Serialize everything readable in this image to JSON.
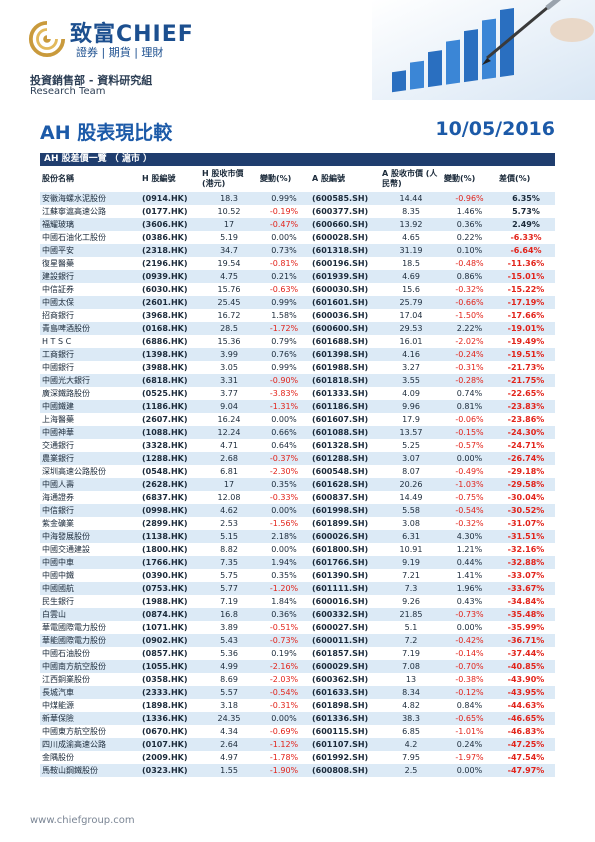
{
  "header": {
    "brand": "致富CHIEF",
    "tagline": "證券 | 期貨 | 理財",
    "dept": "投資銷售部 - 資料研究組",
    "team": "Research Team"
  },
  "report": {
    "title": "AH 股表現比較",
    "date": "10/05/2016",
    "section": "AH 股差價一覽 （ 滬市 ）"
  },
  "columns": [
    "股份名稱",
    "H 股編號",
    "H 股收市價 (港元)",
    "變動(%)",
    "A 股編號",
    "A 股收市價 (人民幣)",
    "變動(%)",
    "差價(%)"
  ],
  "rows": [
    {
      "name": "安徽海螺水泥股份",
      "hcode": "(0914.HK)",
      "hprice": "18.3",
      "hchg": "0.99%",
      "acode": "(600585.SH)",
      "aprice": "14.44",
      "achg": "-0.96%",
      "prem": "6.35%"
    },
    {
      "name": "江蘇寧滬高速公路",
      "hcode": "(0177.HK)",
      "hprice": "10.52",
      "hchg": "-0.19%",
      "acode": "(600377.SH)",
      "aprice": "8.35",
      "achg": "1.46%",
      "prem": "5.73%"
    },
    {
      "name": "福耀玻璃",
      "hcode": "(3606.HK)",
      "hprice": "17",
      "hchg": "-0.47%",
      "acode": "(600660.SH)",
      "aprice": "13.92",
      "achg": "0.36%",
      "prem": "2.49%"
    },
    {
      "name": "中國石油化工股份",
      "hcode": "(0386.HK)",
      "hprice": "5.19",
      "hchg": "0.00%",
      "acode": "(600028.SH)",
      "aprice": "4.65",
      "achg": "0.22%",
      "prem": "-6.33%"
    },
    {
      "name": "中國平安",
      "hcode": "(2318.HK)",
      "hprice": "34.7",
      "hchg": "0.73%",
      "acode": "(601318.SH)",
      "aprice": "31.19",
      "achg": "0.10%",
      "prem": "-6.64%"
    },
    {
      "name": "復星醫藥",
      "hcode": "(2196.HK)",
      "hprice": "19.54",
      "hchg": "-0.81%",
      "acode": "(600196.SH)",
      "aprice": "18.5",
      "achg": "-0.48%",
      "prem": "-11.36%"
    },
    {
      "name": "建設銀行",
      "hcode": "(0939.HK)",
      "hprice": "4.75",
      "hchg": "0.21%",
      "acode": "(601939.SH)",
      "aprice": "4.69",
      "achg": "0.86%",
      "prem": "-15.01%"
    },
    {
      "name": "中信証券",
      "hcode": "(6030.HK)",
      "hprice": "15.76",
      "hchg": "-0.63%",
      "acode": "(600030.SH)",
      "aprice": "15.6",
      "achg": "-0.32%",
      "prem": "-15.22%"
    },
    {
      "name": "中國太保",
      "hcode": "(2601.HK)",
      "hprice": "25.45",
      "hchg": "0.99%",
      "acode": "(601601.SH)",
      "aprice": "25.79",
      "achg": "-0.66%",
      "prem": "-17.19%"
    },
    {
      "name": "招商銀行",
      "hcode": "(3968.HK)",
      "hprice": "16.72",
      "hchg": "1.58%",
      "acode": "(600036.SH)",
      "aprice": "17.04",
      "achg": "-1.50%",
      "prem": "-17.66%"
    },
    {
      "name": "青島啤酒股份",
      "hcode": "(0168.HK)",
      "hprice": "28.5",
      "hchg": "-1.72%",
      "acode": "(600600.SH)",
      "aprice": "29.53",
      "achg": "2.22%",
      "prem": "-19.01%"
    },
    {
      "name": "H T S C",
      "hcode": "(6886.HK)",
      "hprice": "15.36",
      "hchg": "0.79%",
      "acode": "(601688.SH)",
      "aprice": "16.01",
      "achg": "-2.02%",
      "prem": "-19.49%"
    },
    {
      "name": "工商銀行",
      "hcode": "(1398.HK)",
      "hprice": "3.99",
      "hchg": "0.76%",
      "acode": "(601398.SH)",
      "aprice": "4.16",
      "achg": "-0.24%",
      "prem": "-19.51%"
    },
    {
      "name": "中國銀行",
      "hcode": "(3988.HK)",
      "hprice": "3.05",
      "hchg": "0.99%",
      "acode": "(601988.SH)",
      "aprice": "3.27",
      "achg": "-0.31%",
      "prem": "-21.73%"
    },
    {
      "name": "中國光大銀行",
      "hcode": "(6818.HK)",
      "hprice": "3.31",
      "hchg": "-0.90%",
      "acode": "(601818.SH)",
      "aprice": "3.55",
      "achg": "-0.28%",
      "prem": "-21.75%"
    },
    {
      "name": "廣深鐵路股份",
      "hcode": "(0525.HK)",
      "hprice": "3.77",
      "hchg": "-3.83%",
      "acode": "(601333.SH)",
      "aprice": "4.09",
      "achg": "0.74%",
      "prem": "-22.65%"
    },
    {
      "name": "中國鐵建",
      "hcode": "(1186.HK)",
      "hprice": "9.04",
      "hchg": "-1.31%",
      "acode": "(601186.SH)",
      "aprice": "9.96",
      "achg": "0.81%",
      "prem": "-23.83%"
    },
    {
      "name": "上海醫藥",
      "hcode": "(2607.HK)",
      "hprice": "16.24",
      "hchg": "0.00%",
      "acode": "(601607.SH)",
      "aprice": "17.9",
      "achg": "-0.06%",
      "prem": "-23.86%"
    },
    {
      "name": "中國神華",
      "hcode": "(1088.HK)",
      "hprice": "12.24",
      "hchg": "0.66%",
      "acode": "(601088.SH)",
      "aprice": "13.57",
      "achg": "-0.15%",
      "prem": "-24.30%"
    },
    {
      "name": "交通銀行",
      "hcode": "(3328.HK)",
      "hprice": "4.71",
      "hchg": "0.64%",
      "acode": "(601328.SH)",
      "aprice": "5.25",
      "achg": "-0.57%",
      "prem": "-24.71%"
    },
    {
      "name": "農業銀行",
      "hcode": "(1288.HK)",
      "hprice": "2.68",
      "hchg": "-0.37%",
      "acode": "(601288.SH)",
      "aprice": "3.07",
      "achg": "0.00%",
      "prem": "-26.74%"
    },
    {
      "name": "深圳高速公路股份",
      "hcode": "(0548.HK)",
      "hprice": "6.81",
      "hchg": "-2.30%",
      "acode": "(600548.SH)",
      "aprice": "8.07",
      "achg": "-0.49%",
      "prem": "-29.18%"
    },
    {
      "name": "中國人壽",
      "hcode": "(2628.HK)",
      "hprice": "17",
      "hchg": "0.35%",
      "acode": "(601628.SH)",
      "aprice": "20.26",
      "achg": "-1.03%",
      "prem": "-29.58%"
    },
    {
      "name": "海通證券",
      "hcode": "(6837.HK)",
      "hprice": "12.08",
      "hchg": "-0.33%",
      "acode": "(600837.SH)",
      "aprice": "14.49",
      "achg": "-0.75%",
      "prem": "-30.04%"
    },
    {
      "name": "中信銀行",
      "hcode": "(0998.HK)",
      "hprice": "4.62",
      "hchg": "0.00%",
      "acode": "(601998.SH)",
      "aprice": "5.58",
      "achg": "-0.54%",
      "prem": "-30.52%"
    },
    {
      "name": "紫金礦業",
      "hcode": "(2899.HK)",
      "hprice": "2.53",
      "hchg": "-1.56%",
      "acode": "(601899.SH)",
      "aprice": "3.08",
      "achg": "-0.32%",
      "prem": "-31.07%"
    },
    {
      "name": "中海發展股份",
      "hcode": "(1138.HK)",
      "hprice": "5.15",
      "hchg": "2.18%",
      "acode": "(600026.SH)",
      "aprice": "6.31",
      "achg": "4.30%",
      "prem": "-31.51%"
    },
    {
      "name": "中國交通建設",
      "hcode": "(1800.HK)",
      "hprice": "8.82",
      "hchg": "0.00%",
      "acode": "(601800.SH)",
      "aprice": "10.91",
      "achg": "1.21%",
      "prem": "-32.16%"
    },
    {
      "name": "中國中車",
      "hcode": "(1766.HK)",
      "hprice": "7.35",
      "hchg": "1.94%",
      "acode": "(601766.SH)",
      "aprice": "9.19",
      "achg": "0.44%",
      "prem": "-32.88%"
    },
    {
      "name": "中國中鐵",
      "hcode": "(0390.HK)",
      "hprice": "5.75",
      "hchg": "0.35%",
      "acode": "(601390.SH)",
      "aprice": "7.21",
      "achg": "1.41%",
      "prem": "-33.07%"
    },
    {
      "name": "中國國航",
      "hcode": "(0753.HK)",
      "hprice": "5.77",
      "hchg": "-1.20%",
      "acode": "(601111.SH)",
      "aprice": "7.3",
      "achg": "1.96%",
      "prem": "-33.67%"
    },
    {
      "name": "民生銀行",
      "hcode": "(1988.HK)",
      "hprice": "7.19",
      "hchg": "1.84%",
      "acode": "(600016.SH)",
      "aprice": "9.26",
      "achg": "0.43%",
      "prem": "-34.84%"
    },
    {
      "name": "白雲山",
      "hcode": "(0874.HK)",
      "hprice": "16.8",
      "hchg": "0.36%",
      "acode": "(600332.SH)",
      "aprice": "21.85",
      "achg": "-0.73%",
      "prem": "-35.48%"
    },
    {
      "name": "華電國際電力股份",
      "hcode": "(1071.HK)",
      "hprice": "3.89",
      "hchg": "-0.51%",
      "acode": "(600027.SH)",
      "aprice": "5.1",
      "achg": "0.00%",
      "prem": "-35.99%"
    },
    {
      "name": "華能國際電力股份",
      "hcode": "(0902.HK)",
      "hprice": "5.43",
      "hchg": "-0.73%",
      "acode": "(600011.SH)",
      "aprice": "7.2",
      "achg": "-0.42%",
      "prem": "-36.71%"
    },
    {
      "name": "中國石油股份",
      "hcode": "(0857.HK)",
      "hprice": "5.36",
      "hchg": "0.19%",
      "acode": "(601857.SH)",
      "aprice": "7.19",
      "achg": "-0.14%",
      "prem": "-37.44%"
    },
    {
      "name": "中國南方航空股份",
      "hcode": "(1055.HK)",
      "hprice": "4.99",
      "hchg": "-2.16%",
      "acode": "(600029.SH)",
      "aprice": "7.08",
      "achg": "-0.70%",
      "prem": "-40.85%"
    },
    {
      "name": "江西銅業股份",
      "hcode": "(0358.HK)",
      "hprice": "8.69",
      "hchg": "-2.03%",
      "acode": "(600362.SH)",
      "aprice": "13",
      "achg": "-0.38%",
      "prem": "-43.90%"
    },
    {
      "name": "長城汽車",
      "hcode": "(2333.HK)",
      "hprice": "5.57",
      "hchg": "-0.54%",
      "acode": "(601633.SH)",
      "aprice": "8.34",
      "achg": "-0.12%",
      "prem": "-43.95%"
    },
    {
      "name": "中煤能源",
      "hcode": "(1898.HK)",
      "hprice": "3.18",
      "hchg": "-0.31%",
      "acode": "(601898.SH)",
      "aprice": "4.82",
      "achg": "0.84%",
      "prem": "-44.63%"
    },
    {
      "name": "新華保險",
      "hcode": "(1336.HK)",
      "hprice": "24.35",
      "hchg": "0.00%",
      "acode": "(601336.SH)",
      "aprice": "38.3",
      "achg": "-0.65%",
      "prem": "-46.65%"
    },
    {
      "name": "中國東方航空股份",
      "hcode": "(0670.HK)",
      "hprice": "4.34",
      "hchg": "-0.69%",
      "acode": "(600115.SH)",
      "aprice": "6.85",
      "achg": "-1.01%",
      "prem": "-46.83%"
    },
    {
      "name": "四川成渝高速公路",
      "hcode": "(0107.HK)",
      "hprice": "2.64",
      "hchg": "-1.12%",
      "acode": "(601107.SH)",
      "aprice": "4.2",
      "achg": "0.24%",
      "prem": "-47.25%"
    },
    {
      "name": "金隅股份",
      "hcode": "(2009.HK)",
      "hprice": "4.97",
      "hchg": "-1.78%",
      "acode": "(601992.SH)",
      "aprice": "7.95",
      "achg": "-1.97%",
      "prem": "-47.54%"
    },
    {
      "name": "馬鞍山鋼鐵股份",
      "hcode": "(0323.HK)",
      "hprice": "1.55",
      "hchg": "-1.90%",
      "acode": "(600808.SH)",
      "aprice": "2.5",
      "achg": "0.00%",
      "prem": "-47.97%"
    }
  ],
  "footer": {
    "url": "www.chiefgroup.com"
  },
  "colors": {
    "brand": "#1c4f8f",
    "title": "#1c5aa8",
    "section_bar": "#1f3d6e",
    "row_band": "#dceaf6",
    "negative": "#e2231a"
  },
  "icons": {
    "logo": "chief-logo-icon",
    "hero": "rising-bar-chart-with-pen-illustration"
  }
}
